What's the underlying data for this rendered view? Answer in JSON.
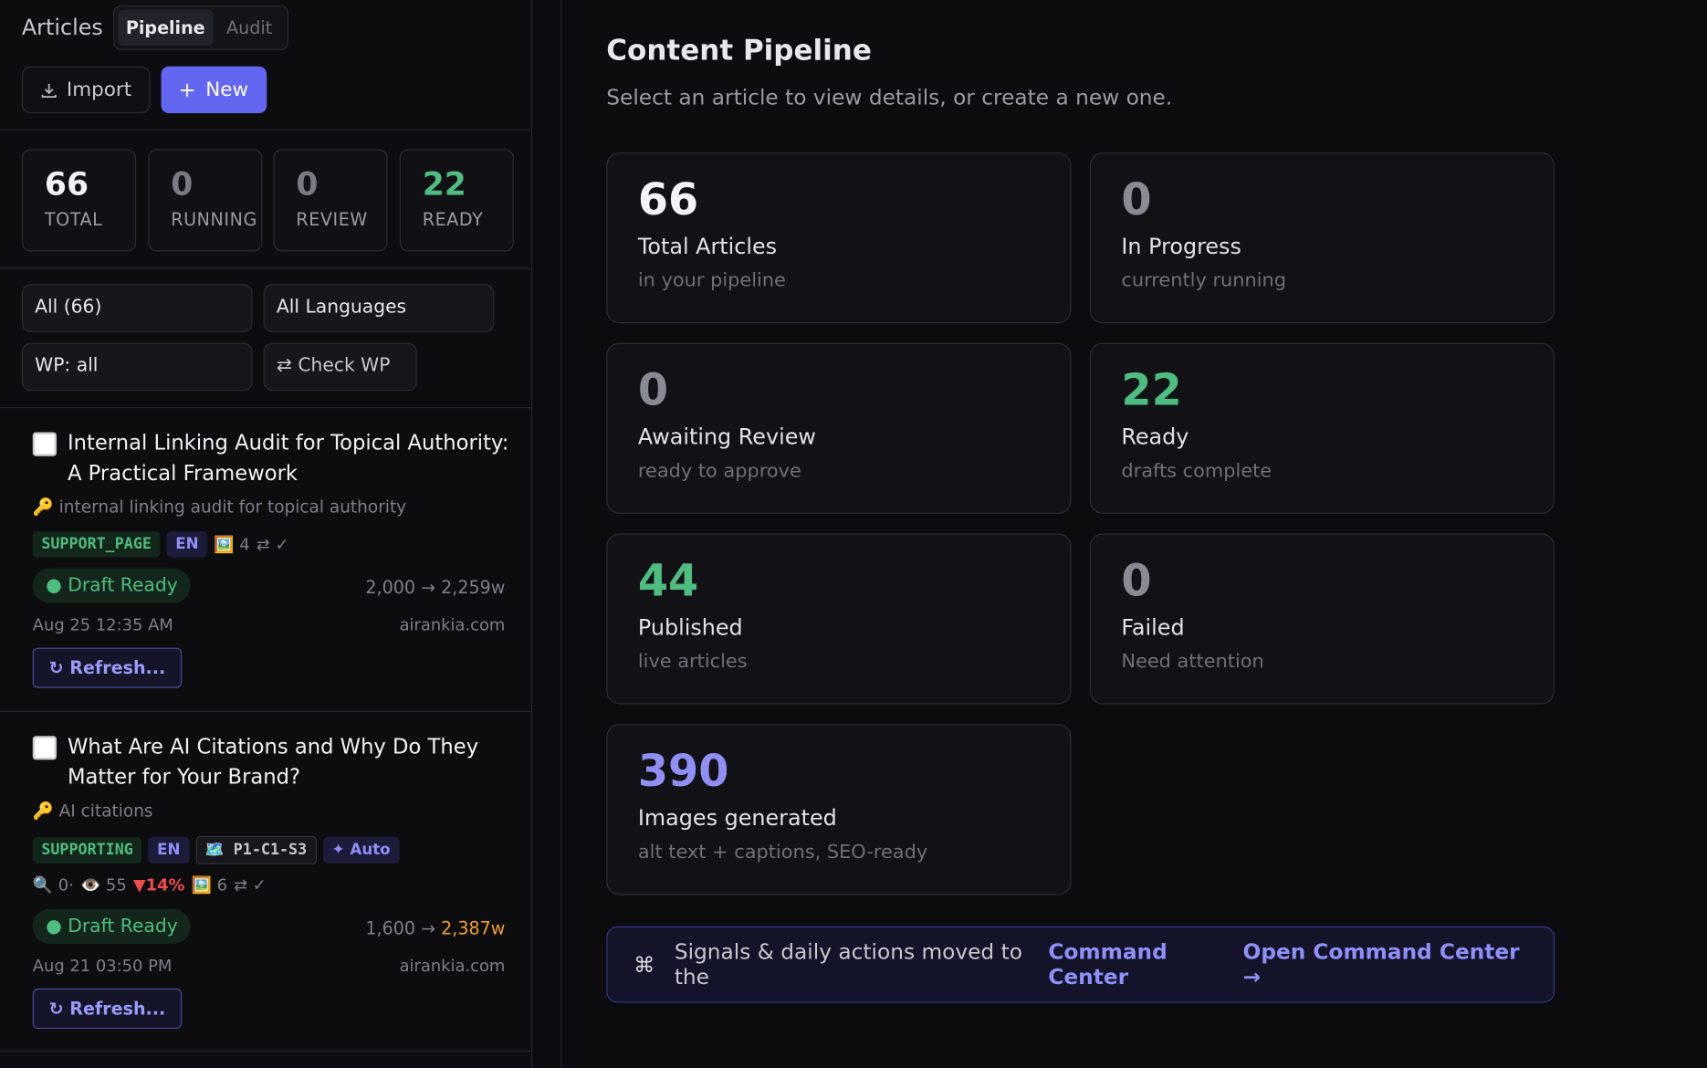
{
  "sidebar": {
    "title": "Articles",
    "tabs": [
      "Pipeline",
      "Audit"
    ],
    "buttons": {
      "import": "Import",
      "new": "New"
    },
    "stats": [
      {
        "value": "66",
        "label": "TOTAL"
      },
      {
        "value": "0",
        "label": "RUNNING"
      },
      {
        "value": "0",
        "label": "REVIEW"
      },
      {
        "value": "22",
        "label": "READY"
      }
    ],
    "filters": [
      "All (66)",
      "All Languages",
      "WP: all",
      "⇄ Check WP"
    ],
    "articles": [
      {
        "title": "Internal Linking Audit for Topical Authority: A Practical Framework",
        "keyword": "🔑 internal linking audit for topical authority",
        "tags": [
          "SUPPORT_PAGE",
          "EN"
        ],
        "meta": [
          "🖼️ 4",
          "⇄ ✓"
        ],
        "status": "Draft Ready",
        "words": "2,000 → 2,259w",
        "date": "Aug 25 12:35 AM",
        "domain": "airankia.com",
        "action": "↻ Refresh..."
      },
      {
        "title": "What Are AI Citations and Why Do They Matter for Your Brand?",
        "keyword": "🔑 AI citations",
        "tags": [
          "SUPPORTING",
          "EN",
          "🗺️ P1-C1-S3",
          "✦ Auto"
        ],
        "meta": [
          "🔍 0·",
          "👁️ 55",
          "▼14%",
          "🖼️ 6",
          "⇄ ✓"
        ],
        "status": "Draft Ready",
        "words": "1,600 →",
        "words_new": "2,387w",
        "date": "Aug 21 03:50 PM",
        "domain": "airankia.com",
        "action": "↻ Refresh..."
      }
    ]
  },
  "main": {
    "title": "Content Pipeline",
    "subtitle": "Select an article to view details, or create a new one.",
    "cards": [
      {
        "value": "66",
        "label": "Total Articles",
        "sub": "in your pipeline"
      },
      {
        "value": "0",
        "label": "In Progress",
        "sub": "currently running"
      },
      {
        "value": "0",
        "label": "Awaiting Review",
        "sub": "ready to approve"
      },
      {
        "value": "22",
        "label": "Ready",
        "sub": "drafts complete"
      },
      {
        "value": "44",
        "label": "Published",
        "sub": "live articles"
      },
      {
        "value": "0",
        "label": "Failed",
        "sub": "Need attention"
      },
      {
        "value": "390",
        "label": "Images generated",
        "sub": "alt text + captions, SEO-ready"
      }
    ],
    "banner": {
      "icon": "⌘",
      "text": "Signals & daily actions moved to the",
      "link": "Command Center",
      "action": "Open Command Center →"
    }
  }
}
